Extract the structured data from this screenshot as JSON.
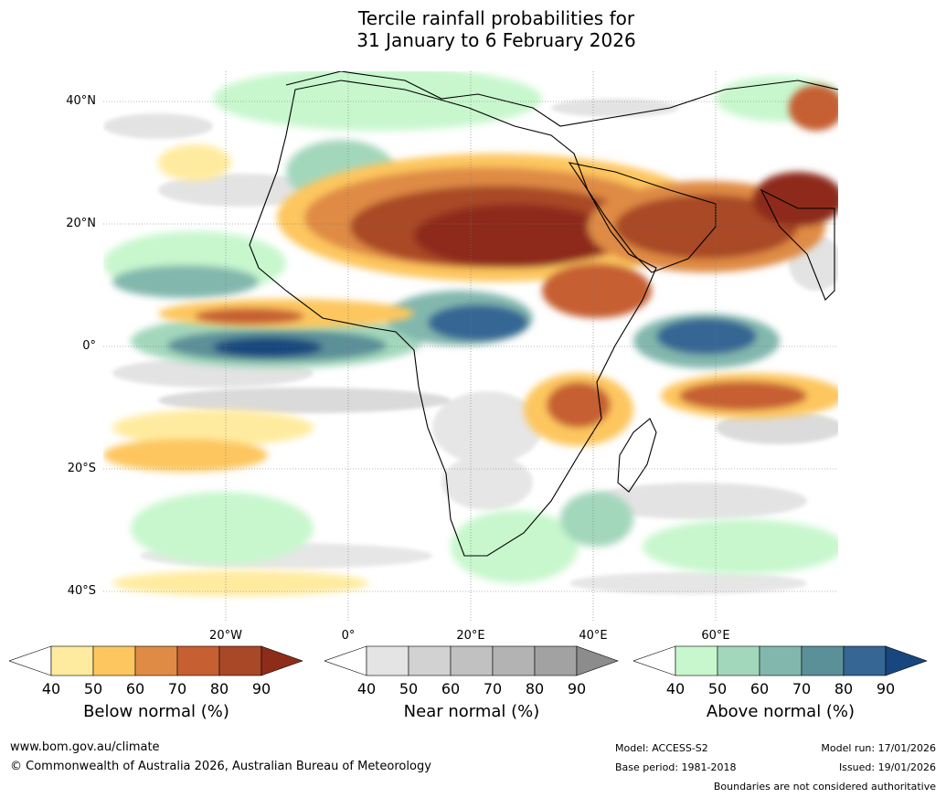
{
  "title": {
    "line1": "Tercile rainfall probabilities for",
    "line2": "31 January to 6 February 2026"
  },
  "map": {
    "lat_labels": [
      "40°N",
      "20°N",
      "0°",
      "20°S",
      "40°S"
    ],
    "lon_labels": [
      "20°W",
      "0°",
      "20°E",
      "40°E",
      "60°E"
    ]
  },
  "colorbars": [
    {
      "caption": "Below normal (%)",
      "ticks": [
        "40",
        "50",
        "60",
        "70",
        "80",
        "90"
      ],
      "colors": [
        "#ffffff",
        "#ffeb9f",
        "#fdc65f",
        "#df8b45",
        "#c65f32",
        "#a94827",
        "#8e2c1a"
      ]
    },
    {
      "caption": "Near normal (%)",
      "ticks": [
        "40",
        "50",
        "60",
        "70",
        "80",
        "90"
      ],
      "colors": [
        "#ffffff",
        "#e4e4e4",
        "#d2d2d2",
        "#c1c1c1",
        "#b3b3b3",
        "#a2a2a2",
        "#8c8c8c"
      ]
    },
    {
      "caption": "Above normal (%)",
      "ticks": [
        "40",
        "50",
        "60",
        "70",
        "80",
        "90"
      ],
      "colors": [
        "#ffffff",
        "#c8f7cd",
        "#a3d7bb",
        "#82b7ad",
        "#5b9099",
        "#356694",
        "#17477e"
      ]
    }
  ],
  "footer": {
    "url": "www.bom.gov.au/climate",
    "copyright": "© Commonwealth of Australia 2026, Australian Bureau of Meteorology",
    "model": "Model: ACCESS-S2",
    "base_period": "Base period: 1981-2018",
    "model_run": "Model run: 17/01/2026",
    "issued": "Issued: 19/01/2026",
    "disclaimer": "Boundaries are not considered authoritative"
  }
}
